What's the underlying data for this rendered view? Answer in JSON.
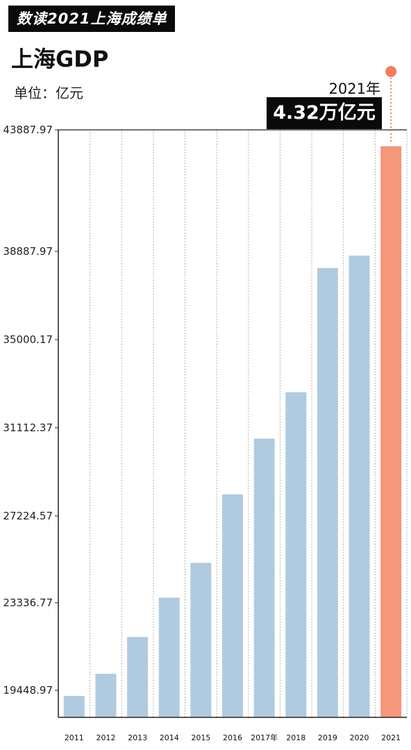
{
  "header": {
    "banner": "数读2021上海成绩单",
    "title": "上海GDP",
    "unit": "单位：亿元"
  },
  "callout": {
    "year": "2021年",
    "value": "4.32万亿元"
  },
  "colors": {
    "bar": "#b0cbe0",
    "highlight": "#f4977a",
    "callout_dot": "#f07e5f",
    "grid": "#9a9a9a"
  },
  "chart_data": {
    "type": "bar",
    "title": "上海GDP",
    "unit": "亿元",
    "categories": [
      "2011",
      "2012",
      "2013",
      "2014",
      "2015",
      "2016",
      "2017年",
      "2018",
      "2019",
      "2020",
      "2021"
    ],
    "values": [
      19196,
      20182,
      21818,
      23568,
      25123,
      28179,
      30633,
      32680,
      38155,
      38701,
      43215
    ],
    "highlight_index": 10,
    "yticks": [
      "43887.97",
      "38887.97",
      "35000.17",
      "31112.37",
      "27224.57",
      "23336.77",
      "19448.97"
    ],
    "grid": true,
    "grid_style": "dotted vertical"
  }
}
